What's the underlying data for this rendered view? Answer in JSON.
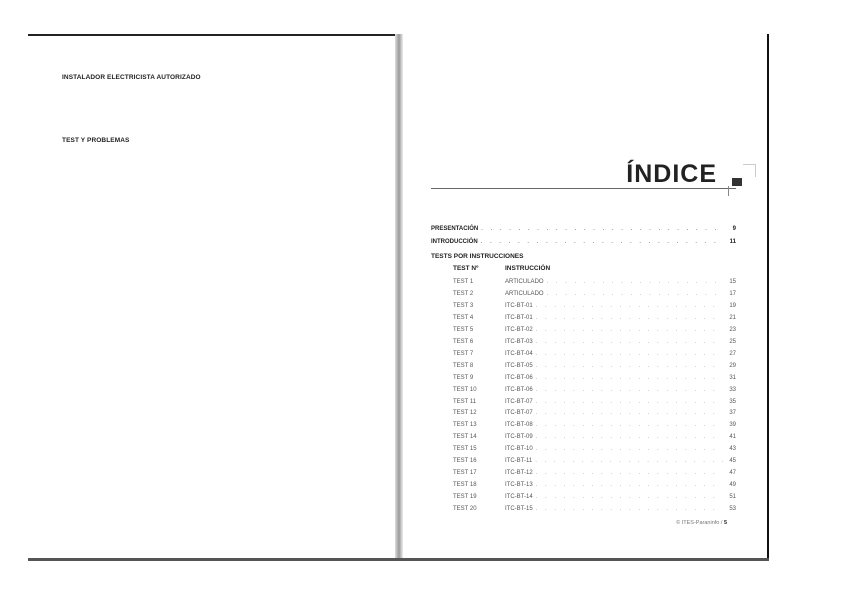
{
  "left_page": {
    "line1": "INSTALADOR ELECTRICISTA AUTORIZADO",
    "line2": "TEST Y PROBLEMAS"
  },
  "right_page": {
    "title": "ÍNDICE",
    "sections": [
      {
        "label": "PRESENTACIÓN",
        "page": "9"
      },
      {
        "label": "INTRODUCCIÓN",
        "page": "11"
      }
    ],
    "subsection": "TESTS POR INSTRUCCIONES",
    "columns": [
      "TEST Nº",
      "INSTRUCCIÓN"
    ],
    "entries": [
      {
        "test": "TEST 1",
        "instr": "ARTICULADO",
        "page": "15"
      },
      {
        "test": "TEST 2",
        "instr": "ARTICULADO",
        "page": "17"
      },
      {
        "test": "TEST 3",
        "instr": "ITC-BT-01",
        "page": "19"
      },
      {
        "test": "TEST 4",
        "instr": "ITC-BT-01",
        "page": "21"
      },
      {
        "test": "TEST 5",
        "instr": "ITC-BT-02",
        "page": "23"
      },
      {
        "test": "TEST 6",
        "instr": "ITC-BT-03",
        "page": "25"
      },
      {
        "test": "TEST 7",
        "instr": "ITC-BT-04",
        "page": "27"
      },
      {
        "test": "TEST 8",
        "instr": "ITC-BT-05",
        "page": "29"
      },
      {
        "test": "TEST 9",
        "instr": "ITC-BT-06",
        "page": "31"
      },
      {
        "test": "TEST 10",
        "instr": "ITC-BT-06",
        "page": "33"
      },
      {
        "test": "TEST 11",
        "instr": "ITC-BT-07",
        "page": "35"
      },
      {
        "test": "TEST 12",
        "instr": "ITC-BT-07",
        "page": "37"
      },
      {
        "test": "TEST 13",
        "instr": "ITC-BT-08",
        "page": "39"
      },
      {
        "test": "TEST 14",
        "instr": "ITC-BT-09",
        "page": "41"
      },
      {
        "test": "TEST 15",
        "instr": "ITC-BT-10",
        "page": "43"
      },
      {
        "test": "TEST 16",
        "instr": "ITC-BT-11",
        "page": "45"
      },
      {
        "test": "TEST 17",
        "instr": "ITC-BT-12",
        "page": "47"
      },
      {
        "test": "TEST 18",
        "instr": "ITC-BT-13",
        "page": "49"
      },
      {
        "test": "TEST 19",
        "instr": "ITC-BT-14",
        "page": "51"
      },
      {
        "test": "TEST 20",
        "instr": "ITC-BT-15",
        "page": "53"
      }
    ],
    "footer_text": "© ITES-Paraninfo /",
    "footer_page": "5"
  }
}
